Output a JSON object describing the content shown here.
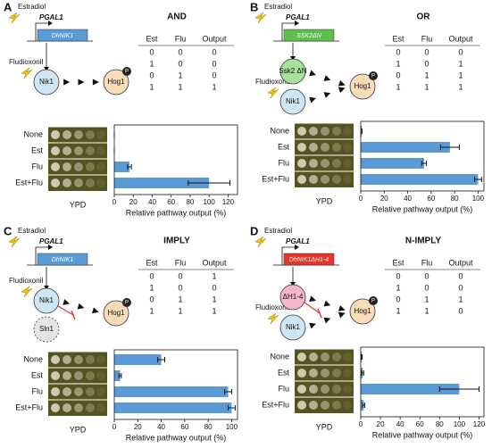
{
  "chart_data": [
    {
      "type": "barh",
      "panel": "A",
      "title": "AND",
      "categories": [
        "None",
        "Est",
        "Flu",
        "Est+Flu"
      ],
      "values": [
        0,
        0,
        16,
        100
      ],
      "errors": [
        0,
        0,
        2,
        22
      ],
      "color": "#5b9bd5",
      "xlabel": "Relative pathway output (%)",
      "image_label": "YPD",
      "xlim": [
        0,
        130
      ],
      "xticks": [
        0,
        20,
        40,
        60,
        80,
        100,
        120
      ],
      "truth_table": {
        "header": [
          "Est",
          "Flu",
          "Output"
        ],
        "rows": [
          [
            0,
            0,
            0
          ],
          [
            1,
            0,
            0
          ],
          [
            0,
            1,
            0
          ],
          [
            1,
            1,
            1
          ]
        ]
      },
      "diagram": {
        "inducer": "Estradiol",
        "promoter": "PGAL1",
        "gene": "DhNIK1",
        "gene_color": "#5b9bd5",
        "drug": "Fludioxonil",
        "phospho": "P",
        "nodes": [
          {
            "label": "Nik1",
            "color": "#cfe6f5"
          },
          {
            "label": "Hog1",
            "color": "#f8dcb8"
          }
        ]
      }
    },
    {
      "type": "barh",
      "panel": "B",
      "title": "OR",
      "categories": [
        "None",
        "Est",
        "Flu",
        "Est+Flu"
      ],
      "values": [
        1,
        76,
        54,
        100
      ],
      "errors": [
        0,
        8,
        2,
        3
      ],
      "color": "#5b9bd5",
      "xlabel": "Relative pathway output (%)",
      "image_label": "YPD",
      "xlim": [
        0,
        105
      ],
      "xticks": [
        0,
        20,
        40,
        60,
        80,
        100
      ],
      "truth_table": {
        "header": [
          "Est",
          "Flu",
          "Output"
        ],
        "rows": [
          [
            0,
            0,
            0
          ],
          [
            1,
            0,
            1
          ],
          [
            0,
            1,
            1
          ],
          [
            1,
            1,
            1
          ]
        ]
      },
      "diagram": {
        "inducer": "Estradiol",
        "promoter": "PGAL1",
        "gene": "SSK2ΔN",
        "gene_color": "#5cc04a",
        "drug": "Fludioxonil",
        "phospho": "P",
        "nodes": [
          {
            "label": "Ssk2 ΔN",
            "color": "#a8e29a"
          },
          {
            "label": "Nik1",
            "color": "#cfe6f5"
          },
          {
            "label": "Hog1",
            "color": "#f8dcb8"
          }
        ]
      }
    },
    {
      "type": "barh",
      "panel": "C",
      "title": "IMPLY",
      "categories": [
        "None",
        "Est",
        "Flu",
        "Est+Flu"
      ],
      "values": [
        40,
        5,
        97,
        100
      ],
      "errors": [
        3,
        1,
        3,
        3
      ],
      "color": "#5b9bd5",
      "xlabel": "Relative pathway output (%)",
      "image_label": "YPD",
      "xlim": [
        0,
        105
      ],
      "xticks": [
        0,
        20,
        40,
        60,
        80,
        100
      ],
      "truth_table": {
        "header": [
          "Est",
          "Flu",
          "Output"
        ],
        "rows": [
          [
            0,
            0,
            1
          ],
          [
            1,
            0,
            0
          ],
          [
            0,
            1,
            1
          ],
          [
            1,
            1,
            1
          ]
        ]
      },
      "diagram": {
        "inducer": "Estradiol",
        "promoter": "PGAL1",
        "gene": "DhNIK1",
        "gene_color": "#5b9bd5",
        "drug": "Fludioxonil",
        "phospho": "P",
        "nodes": [
          {
            "label": "Nik1",
            "color": "#cfe6f5"
          },
          {
            "label": "Sln1",
            "color": "#e4e4e4"
          },
          {
            "label": "Hog1",
            "color": "#f8dcb8"
          }
        ]
      }
    },
    {
      "type": "barh",
      "panel": "D",
      "title": "N-IMPLY",
      "categories": [
        "None",
        "Est",
        "Flu",
        "Est+Flu"
      ],
      "values": [
        1,
        2,
        100,
        3
      ],
      "errors": [
        0.5,
        1,
        20,
        1
      ],
      "color": "#5b9bd5",
      "xlabel": "Relative pathway output (%)",
      "image_label": "YPD",
      "xlim": [
        0,
        125
      ],
      "xticks": [
        0,
        20,
        40,
        60,
        80,
        100,
        120
      ],
      "truth_table": {
        "header": [
          "Est",
          "Flu",
          "Output"
        ],
        "rows": [
          [
            0,
            0,
            0
          ],
          [
            1,
            0,
            0
          ],
          [
            0,
            1,
            1
          ],
          [
            1,
            1,
            0
          ]
        ]
      },
      "diagram": {
        "inducer": "Estradiol",
        "promoter": "PGAL1",
        "gene": "DhNIK1ΔH1-4",
        "gene_color": "#e8332a",
        "drug": "Fludioxonil",
        "phospho": "P",
        "nodes": [
          {
            "label": "ΔH1-4",
            "color": "#f6b8c8"
          },
          {
            "label": "Nik1",
            "color": "#cfe6f5"
          },
          {
            "label": "Hog1",
            "color": "#f8dcb8"
          }
        ]
      }
    }
  ]
}
